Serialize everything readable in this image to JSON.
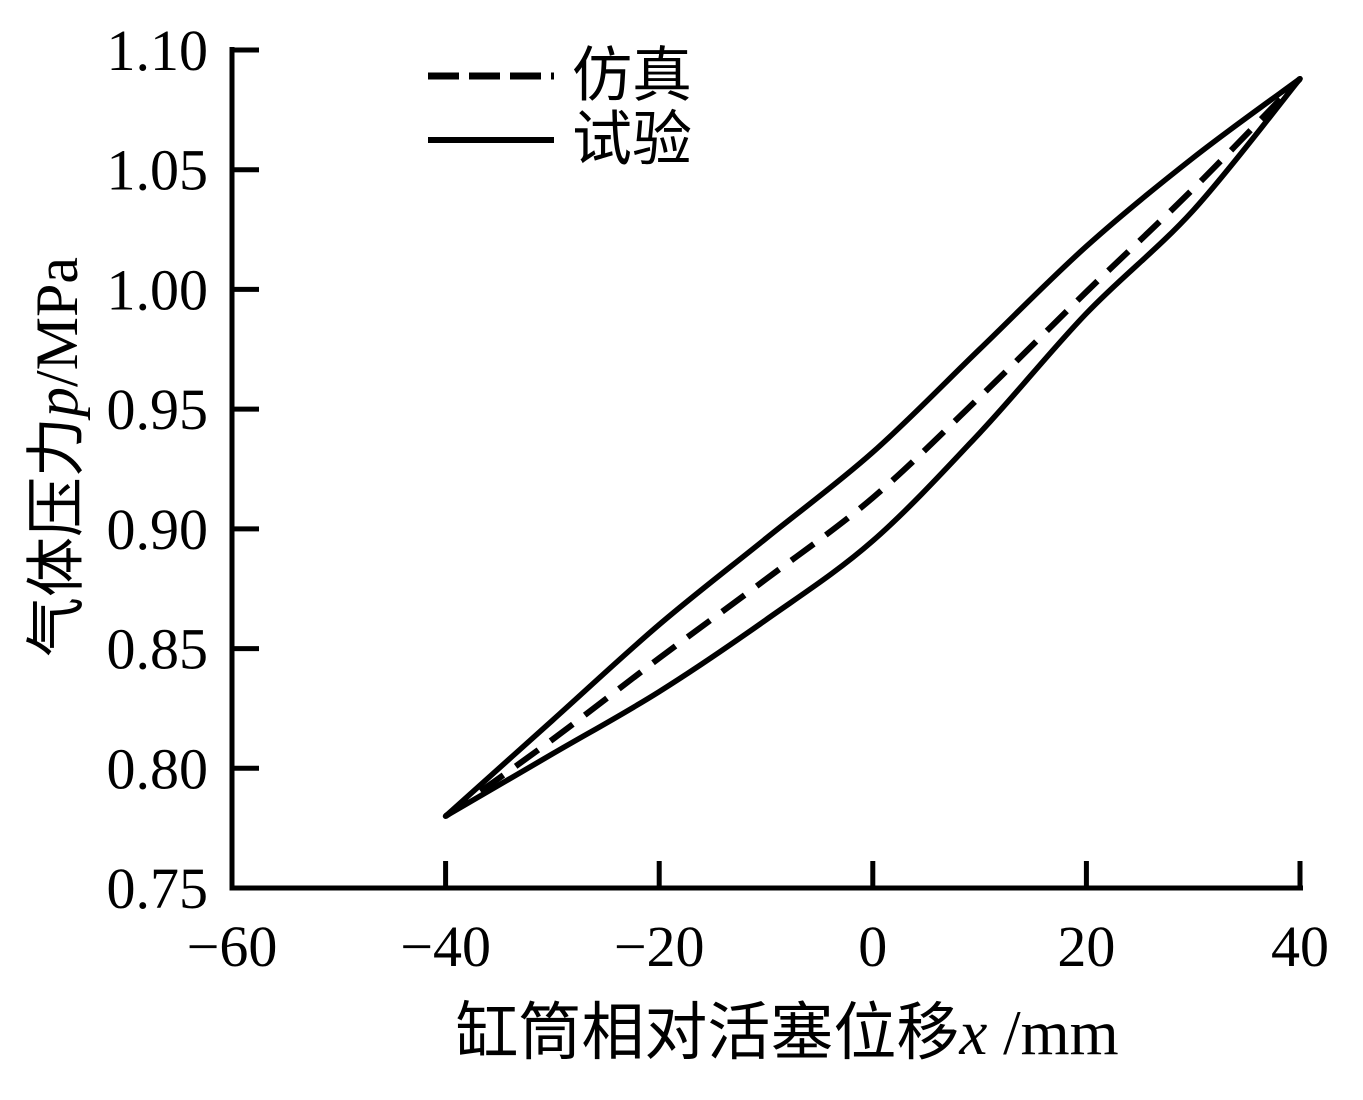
{
  "figure": {
    "background": "#ffffff",
    "line_color": "#000000"
  },
  "chart_data": {
    "type": "line",
    "title": "",
    "xlabel": "缸筒相对活塞位移x /mm",
    "xlabel_parts": {
      "text": "缸筒相对活塞位移",
      "var": "x",
      "unit": " /mm"
    },
    "ylabel": "气体压力p/MPa",
    "ylabel_parts": {
      "text": "气体压力",
      "var": "p",
      "unit": "/MPa"
    },
    "xlim": [
      -60,
      40
    ],
    "ylim": [
      0.75,
      1.1
    ],
    "x_ticks": [
      -60,
      -40,
      -20,
      0,
      20,
      40
    ],
    "x_tick_labels": [
      "−60",
      "−40",
      "−20",
      "0",
      "20",
      "40"
    ],
    "y_ticks": [
      0.75,
      0.8,
      0.85,
      0.9,
      0.95,
      1.0,
      1.05,
      1.1
    ],
    "y_tick_labels": [
      "0.75",
      "0.80",
      "0.85",
      "0.90",
      "0.95",
      "1.00",
      "1.05",
      "1.10"
    ],
    "grid": false,
    "legend": {
      "position": "top-inside",
      "items": [
        {
          "label": "仿真",
          "line_style": "dashed",
          "series": "simulation"
        },
        {
          "label": "试验",
          "line_style": "solid",
          "series": "experiment"
        }
      ]
    },
    "x": [
      -40,
      -30,
      -20,
      -10,
      0,
      10,
      20,
      30,
      40
    ],
    "series": [
      {
        "name": "仿真",
        "id": "simulation",
        "line_style": "dashed",
        "y": [
          0.78,
          0.812,
          0.846,
          0.879,
          0.913,
          0.955,
          0.999,
          1.042,
          1.088
        ]
      },
      {
        "name": "试验",
        "id": "experiment",
        "line_style": "solid",
        "shape": "hysteresis-loop",
        "y_upper": [
          0.78,
          0.82,
          0.86,
          0.896,
          0.932,
          0.975,
          1.018,
          1.055,
          1.088
        ],
        "y_lower": [
          0.78,
          0.806,
          0.832,
          0.862,
          0.895,
          0.94,
          0.99,
          1.033,
          1.088
        ]
      }
    ],
    "colors": {
      "line": "#000000",
      "background": "#ffffff"
    }
  }
}
